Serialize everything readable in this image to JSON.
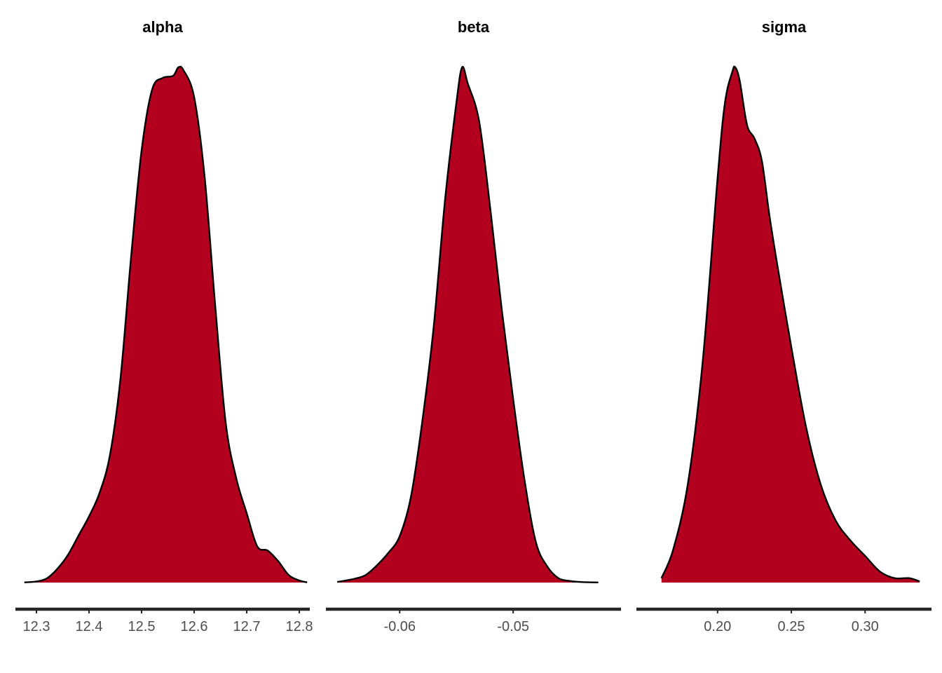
{
  "chart_data": [
    {
      "type": "area",
      "title": "alpha",
      "xlim": [
        12.26,
        12.82
      ],
      "ticks": [
        12.3,
        12.4,
        12.5,
        12.6,
        12.7,
        12.8
      ],
      "tick_labels": [
        "12.3",
        "12.4",
        "12.5",
        "12.6",
        "12.7",
        "12.8"
      ],
      "x": [
        12.277,
        12.3,
        12.32,
        12.34,
        12.36,
        12.38,
        12.4,
        12.42,
        12.44,
        12.46,
        12.48,
        12.5,
        12.52,
        12.54,
        12.56,
        12.57,
        12.58,
        12.6,
        12.62,
        12.64,
        12.66,
        12.68,
        12.7,
        12.72,
        12.74,
        12.76,
        12.78,
        12.8,
        12.815
      ],
      "density": [
        0.002,
        0.01,
        0.04,
        0.13,
        0.26,
        0.44,
        0.62,
        0.84,
        1.2,
        1.92,
        3.05,
        4.05,
        4.62,
        4.73,
        4.75,
        4.83,
        4.8,
        4.55,
        3.8,
        2.6,
        1.5,
        0.98,
        0.65,
        0.34,
        0.3,
        0.2,
        0.07,
        0.02,
        0.002
      ]
    },
    {
      "type": "area",
      "title": "beta",
      "xlim": [
        -0.0665,
        -0.0405
      ],
      "ticks": [
        -0.06,
        -0.05
      ],
      "tick_labels": [
        "-0.06",
        "-0.05"
      ],
      "x": [
        -0.0655,
        -0.064,
        -0.063,
        -0.062,
        -0.061,
        -0.06,
        -0.059,
        -0.058,
        -0.057,
        -0.056,
        -0.055,
        -0.0545,
        -0.054,
        -0.053,
        -0.052,
        -0.051,
        -0.05,
        -0.049,
        -0.048,
        -0.047,
        -0.046,
        -0.045,
        -0.044,
        -0.0425
      ],
      "density": [
        0.01,
        0.07,
        0.14,
        0.32,
        0.55,
        0.86,
        1.6,
        3.0,
        4.75,
        7.1,
        8.9,
        9.55,
        9.25,
        8.55,
        6.9,
        5.05,
        3.4,
        1.9,
        0.75,
        0.3,
        0.08,
        0.03,
        0.01,
        0.002
      ]
    },
    {
      "type": "area",
      "title": "sigma",
      "xlim": [
        0.145,
        0.345
      ],
      "ticks": [
        0.2,
        0.25,
        0.3
      ],
      "tick_labels": [
        "0.20",
        "0.25",
        "0.30"
      ],
      "x": [
        0.162,
        0.17,
        0.18,
        0.19,
        0.2,
        0.205,
        0.21,
        0.212,
        0.215,
        0.22,
        0.225,
        0.23,
        0.235,
        0.24,
        0.25,
        0.26,
        0.27,
        0.28,
        0.29,
        0.3,
        0.31,
        0.32,
        0.33,
        0.337
      ],
      "density": [
        0.02,
        0.15,
        0.45,
        1.0,
        1.82,
        2.16,
        2.3,
        2.32,
        2.26,
        2.06,
        2.0,
        1.9,
        1.66,
        1.45,
        1.06,
        0.7,
        0.44,
        0.28,
        0.19,
        0.12,
        0.05,
        0.02,
        0.02,
        0.005
      ]
    }
  ],
  "colors": {
    "fill": "#b2001e",
    "outline": "#000000",
    "axis": "#262626",
    "tick_text": "#4d4d4d"
  }
}
